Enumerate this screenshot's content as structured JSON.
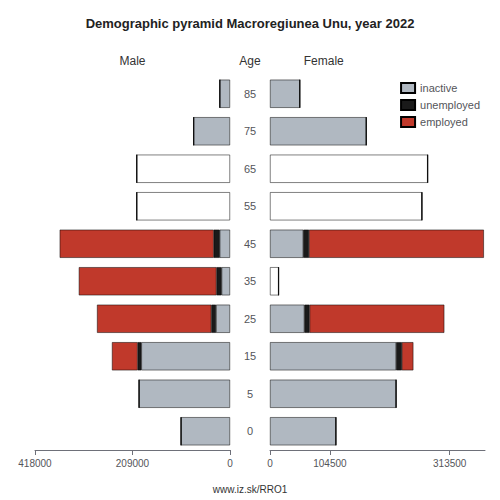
{
  "chart_data": [
    {
      "type": "bar",
      "orientation": "horizontal",
      "stacked": true,
      "title": "Demographic pyramid Macroregiunea Unu, year 2022",
      "subtitle": "Male",
      "ylabel": "Age",
      "annotations": [
        "www.iz.sk/RRO1"
      ],
      "categories": [
        0,
        5,
        15,
        25,
        35,
        45,
        55,
        65,
        75,
        85
      ],
      "xlim": [
        418000,
        0
      ],
      "xticks": [
        418000,
        209000,
        0
      ],
      "grid": false,
      "series": [
        {
          "name": "inactive",
          "color": "#b0b8c1",
          "colors": [
            "#b0b8c1",
            "#b0b8c1",
            "#b0b8c1",
            "#b0b8c1",
            "#b0b8c1",
            "#b0b8c1",
            "#ffffff",
            "#ffffff",
            "#b0b8c1",
            "#b0b8c1"
          ],
          "values": [
            105000,
            195000,
            190000,
            30000,
            18000,
            22000,
            200000,
            200000,
            78000,
            22000
          ]
        },
        {
          "name": "unemployed",
          "color": "#1a1a1a",
          "values": [
            0,
            0,
            8000,
            10000,
            11000,
            13000,
            0,
            0,
            0,
            0
          ]
        },
        {
          "name": "employed",
          "color": "#c0392b",
          "values": [
            0,
            0,
            55000,
            245000,
            295000,
            330000,
            0,
            0,
            0,
            0
          ]
        }
      ]
    },
    {
      "type": "bar",
      "orientation": "horizontal",
      "stacked": true,
      "subtitle": "Female",
      "categories": [
        0,
        5,
        15,
        25,
        35,
        45,
        55,
        65,
        75,
        85
      ],
      "xlim": [
        0,
        375000
      ],
      "xticks": [
        0,
        104500,
        313500
      ],
      "grid": false,
      "legend": "upper right",
      "tick_labels": "x",
      "series": [
        {
          "name": "inactive",
          "color": "#b0b8c1",
          "colors": [
            "#b0b8c1",
            "#b0b8c1",
            "#b0b8c1",
            "#b0b8c1",
            "#ffffff",
            "#b0b8c1",
            "#ffffff",
            "#ffffff",
            "#b0b8c1",
            "#b0b8c1"
          ],
          "values": [
            115000,
            220000,
            220000,
            60000,
            15000,
            58000,
            265000,
            275000,
            168000,
            52000
          ]
        },
        {
          "name": "unemployed",
          "color": "#1a1a1a",
          "values": [
            0,
            0,
            10000,
            9000,
            0,
            10000,
            0,
            0,
            0,
            0
          ]
        },
        {
          "name": "employed",
          "color": "#c0392b",
          "values": [
            0,
            0,
            20000,
            235000,
            0,
            305000,
            0,
            0,
            0,
            0
          ]
        }
      ]
    }
  ]
}
